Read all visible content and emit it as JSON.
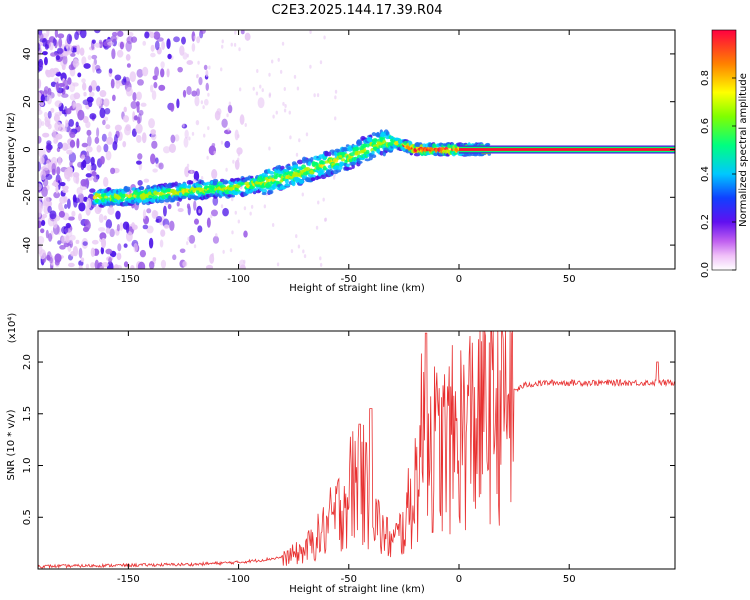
{
  "title": "C2E3.2025.144.17.39.R04",
  "chart_data": [
    {
      "type": "heatmap",
      "xlabel": "Height of straight line (km)",
      "ylabel": "Frequency (Hz)",
      "xlim": [
        -191,
        98
      ],
      "ylim": [
        -50,
        50
      ],
      "x_ticks": [
        "-150",
        "-100",
        "-50",
        "0",
        "50"
      ],
      "y_ticks": [
        "-40",
        "-20",
        "0",
        "20",
        "40"
      ],
      "colorbar": {
        "label": "Normalized spectral amplitude",
        "range": [
          0,
          1
        ],
        "ticks": [
          "0.0",
          "0.2",
          "0.4",
          "0.6",
          "0.8"
        ]
      },
      "ridge": {
        "x": [
          -160,
          -140,
          -120,
          -100,
          -90,
          -80,
          -70,
          -60,
          -50,
          -45,
          -40,
          -35,
          -30,
          -25,
          -20,
          -10,
          0,
          10,
          50,
          95
        ],
        "y": [
          -20,
          -19,
          -17,
          -16,
          -14,
          -12,
          -9,
          -6,
          -3,
          -1,
          1,
          3,
          3,
          2,
          0,
          0,
          0,
          0,
          0,
          0
        ]
      },
      "colors": [
        "#ffffff",
        "#e8c8f4",
        "#9a5ae6",
        "#4a10e8",
        "#1e70f0",
        "#00d4ff",
        "#00ff70",
        "#b8f000",
        "#ffe000",
        "#ff8000",
        "#ff1030"
      ]
    },
    {
      "type": "line",
      "xlabel": "Height of straight line (km)",
      "ylabel": "SNR (10 * v/v)",
      "y_multiplier": "(x10⁴)",
      "xlim": [
        -191,
        98
      ],
      "ylim": [
        0,
        2.3
      ],
      "x_ticks": [
        "-150",
        "-100",
        "-50",
        "0",
        "50"
      ],
      "y_ticks": [
        "0.5",
        "1.0",
        "1.5",
        "2.0"
      ],
      "line_color": "#e83030",
      "envelope": {
        "x": [
          -191,
          -120,
          -100,
          -90,
          -80,
          -70,
          -62,
          -55,
          -50,
          -45,
          -40,
          -35,
          -30,
          -25,
          -20,
          -16,
          -14,
          -10,
          -5,
          0,
          5,
          10,
          15,
          20,
          25,
          30,
          40,
          50,
          60,
          70,
          80,
          90,
          98
        ],
        "y": [
          0.01,
          0.03,
          0.05,
          0.07,
          0.1,
          0.18,
          0.35,
          0.55,
          0.75,
          0.9,
          0.6,
          0.35,
          0.25,
          0.4,
          0.8,
          1.35,
          1.25,
          1.15,
          1.2,
          1.3,
          1.4,
          1.5,
          1.6,
          1.65,
          1.72,
          1.78,
          1.8,
          1.8,
          1.8,
          1.8,
          1.8,
          1.8,
          1.8
        ]
      },
      "peaks": [
        {
          "x": -45,
          "y": 1.4
        },
        {
          "x": -40,
          "y": 1.55
        },
        {
          "x": -15,
          "y": 2.28
        },
        {
          "x": 90,
          "y": 2.0
        }
      ]
    }
  ]
}
